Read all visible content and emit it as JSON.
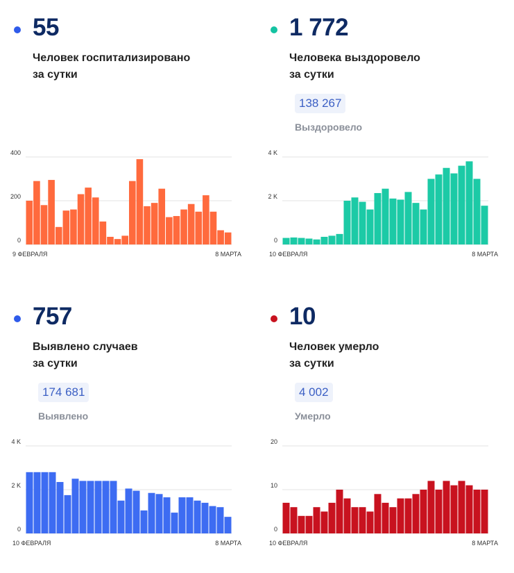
{
  "panels": [
    {
      "value": "55",
      "desc_line1": "Человек госпитализировано",
      "desc_line2": "за сутки",
      "dot_color": "#2f5bea",
      "bar_color": "#ff6a3d",
      "chart_data": {
        "type": "bar",
        "title": "Человек госпитализировано за сутки",
        "ylim": [
          0,
          400
        ],
        "yticks": [
          "0",
          "200",
          "400"
        ],
        "ytick_values": [
          0,
          200,
          400
        ],
        "xlabel_start": "9 ФЕВРАЛЯ",
        "xlabel_end": "8 МАРТА",
        "values": [
          200,
          290,
          180,
          295,
          80,
          155,
          160,
          230,
          260,
          215,
          105,
          35,
          25,
          40,
          290,
          390,
          175,
          190,
          255,
          125,
          130,
          160,
          185,
          150,
          225,
          150,
          65,
          55
        ]
      }
    },
    {
      "value": "1 772",
      "desc_line1": "Человека выздоровело",
      "desc_line2": "за сутки",
      "total": "138 267",
      "total_label": "Выздоровело",
      "dot_color": "#14c3a2",
      "bar_color": "#1ccaa6",
      "chart_data": {
        "type": "bar",
        "title": "Человека выздоровело за сутки",
        "ylim": [
          0,
          4000
        ],
        "yticks": [
          "0",
          "2 K",
          "4 K"
        ],
        "ytick_values": [
          0,
          2000,
          4000
        ],
        "xlabel_start": "10 ФЕВРАЛЯ",
        "xlabel_end": "8 МАРТА",
        "values": [
          300,
          320,
          300,
          270,
          230,
          350,
          400,
          480,
          2000,
          2150,
          1950,
          1600,
          2350,
          2550,
          2100,
          2050,
          2400,
          1900,
          1600,
          3000,
          3200,
          3500,
          3250,
          3600,
          3800,
          3000,
          1772
        ]
      }
    },
    {
      "value": "757",
      "desc_line1": "Выявлено случаев",
      "desc_line2": "за сутки",
      "total": "174 681",
      "total_label": "Выявлено",
      "dot_color": "#2f5bea",
      "bar_color": "#3d6cf2",
      "chart_data": {
        "type": "bar",
        "title": "Выявлено случаев за сутки",
        "ylim": [
          0,
          4000
        ],
        "yticks": [
          "0",
          "2 K",
          "4 K"
        ],
        "ytick_values": [
          0,
          2000,
          4000
        ],
        "xlabel_start": "10 ФЕВРАЛЯ",
        "xlabel_end": "8 МАРТА",
        "values": [
          2800,
          2800,
          2800,
          2800,
          2350,
          1750,
          2500,
          2400,
          2400,
          2400,
          2400,
          2400,
          1500,
          2050,
          1950,
          1050,
          1850,
          1800,
          1650,
          950,
          1650,
          1650,
          1500,
          1400,
          1250,
          1200,
          757
        ]
      }
    },
    {
      "value": "10",
      "desc_line1": "Человек умерло",
      "desc_line2": "за сутки",
      "total": "4 002",
      "total_label": "Умерло",
      "dot_color": "#c8121f",
      "bar_color": "#c8121f",
      "chart_data": {
        "type": "bar",
        "title": "Человек умерло за сутки",
        "ylim": [
          0,
          20
        ],
        "yticks": [
          "0",
          "10",
          "20"
        ],
        "ytick_values": [
          0,
          10,
          20
        ],
        "xlabel_start": "10 ФЕВРАЛЯ",
        "xlabel_end": "8 МАРТА",
        "values": [
          7,
          6,
          4,
          4,
          6,
          5,
          7,
          10,
          8,
          6,
          6,
          5,
          9,
          7,
          6,
          8,
          8,
          9,
          10,
          12,
          10,
          12,
          11,
          12,
          11,
          10,
          10
        ]
      }
    }
  ]
}
